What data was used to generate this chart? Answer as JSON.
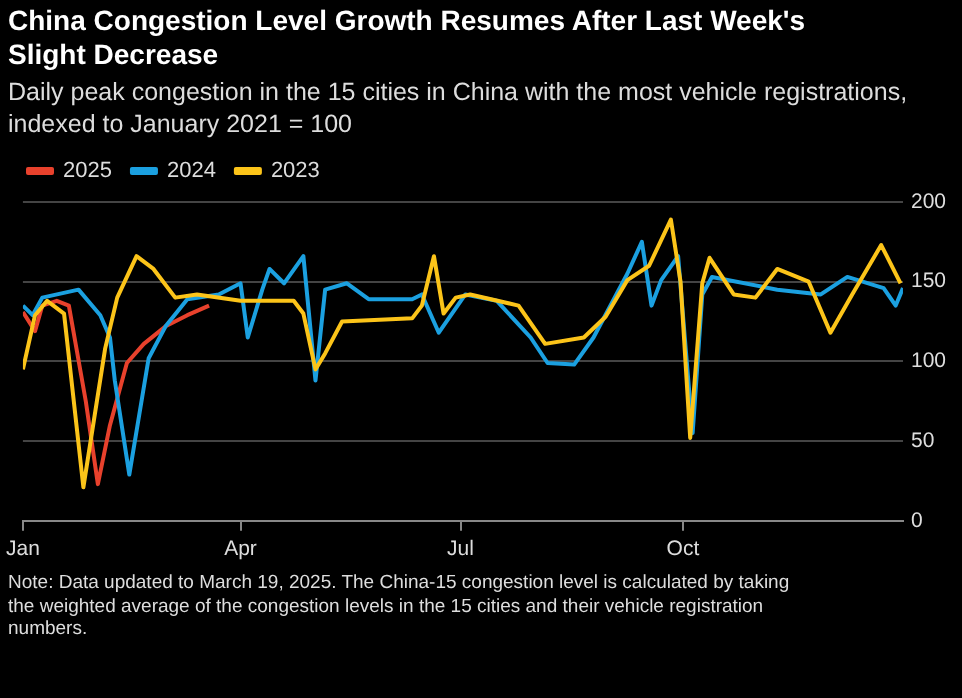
{
  "chart_data": {
    "type": "line",
    "title": "China Congestion Level Growth Resumes After Last Week's Slight Decrease",
    "subtitle": "Daily peak congestion in the 15 cities in China with the most vehicle registrations, indexed to January 2021 = 100",
    "annotations": [
      "Note: Data updated to March 19, 2025. The China-15 congestion level is calculated by taking the weighted average of the congestion levels in the 15 cities and their vehicle registration numbers."
    ],
    "xlim": [
      "--01-01",
      "--12-31"
    ],
    "xticks": [
      {
        "value": "--01-01",
        "label": "Jan"
      },
      {
        "value": "--04-01",
        "label": "Apr"
      },
      {
        "value": "--07-01",
        "label": "Jul"
      },
      {
        "value": "--10-01",
        "label": "Oct"
      }
    ],
    "ylim": [
      0,
      200
    ],
    "yticks": [
      0,
      50,
      100,
      150,
      200
    ],
    "grid": "y",
    "legend": "top left",
    "marker": "none",
    "line_style": "solid",
    "series": [
      {
        "name": "2025",
        "color": "#e8412c",
        "x": [
          "--01-01",
          "--01-06",
          "--01-09",
          "--01-15",
          "--01-20",
          "--01-27",
          "--02-01",
          "--02-06",
          "--02-13",
          "--02-20",
          "--03-01",
          "--03-10",
          "--03-19"
        ],
        "values": [
          131,
          119,
          135,
          138,
          135,
          75,
          23,
          60,
          99,
          111,
          122,
          129,
          135
        ]
      },
      {
        "name": "2024",
        "color": "#1ba0e0",
        "x": [
          "--01-01",
          "--01-05",
          "--01-09",
          "--01-24",
          "--02-02",
          "--02-06",
          "--02-08",
          "--02-14",
          "--02-22",
          "--03-01",
          "--03-10",
          "--03-23",
          "--04-01",
          "--04-04",
          "--04-10",
          "--04-13",
          "--04-19",
          "--04-27",
          "--05-02",
          "--05-06",
          "--05-15",
          "--05-24",
          "--06-11",
          "--06-15",
          "--06-22",
          "--07-03",
          "--07-16",
          "--07-30",
          "--08-06",
          "--08-17",
          "--08-25",
          "--09-08",
          "--09-14",
          "--09-18",
          "--09-22",
          "--09-29",
          "--10-05",
          "--10-09",
          "--10-13",
          "--11-09",
          "--11-27",
          "--12-08",
          "--12-23",
          "--12-28",
          "--12-31"
        ],
        "values": [
          135,
          129,
          140,
          145,
          129,
          115,
          88,
          29,
          102,
          122,
          139,
          142,
          149,
          115,
          145,
          158,
          149,
          166,
          88,
          145,
          149,
          139,
          139,
          142,
          118,
          142,
          138,
          115,
          99,
          98,
          115,
          155,
          175,
          135,
          151,
          166,
          55,
          142,
          153,
          145,
          142,
          153,
          146,
          135,
          146
        ]
      },
      {
        "name": "2023",
        "color": "#fcc419",
        "x": [
          "--01-01",
          "--01-06",
          "--01-11",
          "--01-18",
          "--01-26",
          "--02-04",
          "--02-09",
          "--02-17",
          "--02-24",
          "--03-05",
          "--03-14",
          "--04-01",
          "--04-23",
          "--04-27",
          "--05-02",
          "--05-06",
          "--05-13",
          "--06-11",
          "--06-15",
          "--06-20",
          "--06-24",
          "--06-29",
          "--07-05",
          "--07-25",
          "--08-05",
          "--08-21",
          "--08-30",
          "--09-08",
          "--09-17",
          "--09-26",
          "--09-30",
          "--10-04",
          "--10-09",
          "--10-12",
          "--10-22",
          "--10-31",
          "--11-09",
          "--11-22",
          "--12-01",
          "--12-10",
          "--12-22",
          "--12-30"
        ],
        "values": [
          95,
          129,
          138,
          130,
          21,
          108,
          140,
          166,
          158,
          140,
          142,
          138,
          138,
          130,
          95,
          105,
          125,
          127,
          135,
          166,
          130,
          140,
          142,
          135,
          111,
          115,
          128,
          151,
          160,
          189,
          150,
          52,
          149,
          165,
          142,
          140,
          158,
          150,
          118,
          142,
          173,
          149
        ]
      }
    ]
  }
}
